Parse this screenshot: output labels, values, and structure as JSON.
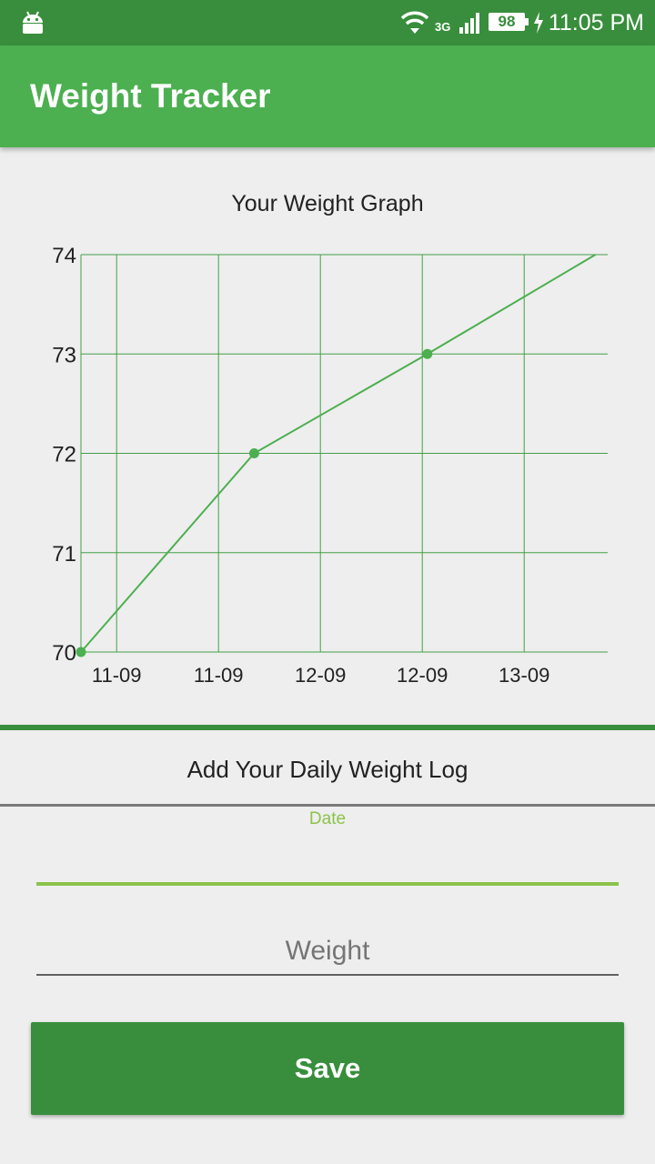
{
  "status_bar": {
    "network_type": "3G",
    "battery_level": "98",
    "time": "11:05 PM",
    "icons": [
      "android-icon",
      "wifi-icon",
      "signal-icon",
      "battery-icon",
      "charge-icon"
    ]
  },
  "app_bar": {
    "title": "Weight Tracker"
  },
  "colors": {
    "primary": "#4caf50",
    "primary_dark": "#388e3c",
    "accent": "#8bc34a",
    "background": "#eeeeee"
  },
  "chart_data": {
    "type": "line",
    "title": "Your Weight Graph",
    "x_tick_labels": [
      "11-09",
      "11-09",
      "12-09",
      "12-09",
      "13-09"
    ],
    "y_ticks": [
      70,
      71,
      72,
      73,
      74
    ],
    "ylim": [
      70,
      74
    ],
    "grid": true,
    "series": [
      {
        "points": [
          [
            0.0,
            70
          ],
          [
            1.7,
            72
          ],
          [
            3.4,
            73
          ],
          [
            5.05,
            74
          ]
        ]
      }
    ]
  },
  "form": {
    "title": "Add Your Daily Weight Log",
    "date_label": "Date",
    "date_value": "",
    "weight_placeholder": "Weight",
    "weight_value": "",
    "save_label": "Save"
  }
}
